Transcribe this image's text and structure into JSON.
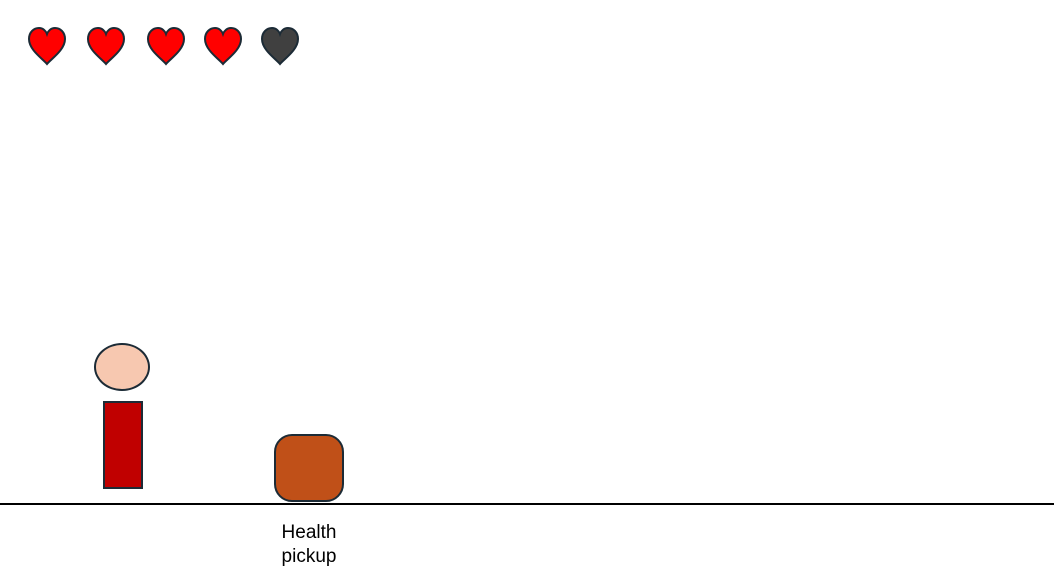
{
  "hud": {
    "hearts": [
      {
        "state": "full",
        "icon": "heart-icon"
      },
      {
        "state": "full",
        "icon": "heart-icon"
      },
      {
        "state": "full",
        "icon": "heart-icon"
      },
      {
        "state": "full",
        "icon": "heart-icon"
      },
      {
        "state": "empty",
        "icon": "heart-icon"
      }
    ],
    "health_current": 4,
    "health_max": 5
  },
  "colors": {
    "heart_full": "#ff0000",
    "heart_empty": "#404040",
    "outline": "#1c2b36",
    "player_head": "#f7c8b0",
    "player_body": "#c00000",
    "pickup": "#c05018",
    "ground": "#000000"
  },
  "pickup": {
    "label": "Health pickup"
  }
}
